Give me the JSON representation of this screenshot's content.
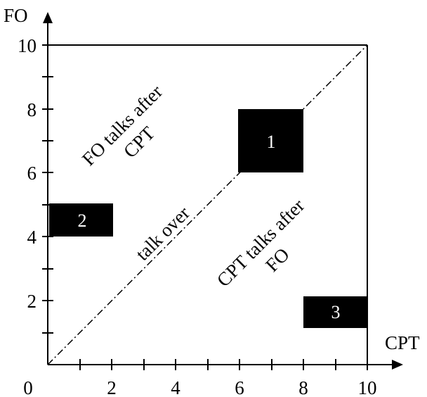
{
  "axes": {
    "x_title": "CPT",
    "y_title": "FO",
    "x_ticks": [
      "0",
      "2",
      "4",
      "6",
      "8",
      "10"
    ],
    "y_ticks": [
      "2",
      "4",
      "6",
      "8",
      "10"
    ],
    "x_range": [
      0,
      10
    ],
    "y_range": [
      0,
      10
    ]
  },
  "regions": {
    "upper_line1": "FO talks after",
    "upper_line2": "CPT",
    "diagonal": "talk over",
    "lower_line1": "CPT talks after",
    "lower_line2": "FO"
  },
  "boxes": [
    {
      "label": "1",
      "x_range": [
        6,
        8
      ],
      "y_range": [
        6,
        8
      ]
    },
    {
      "label": "2",
      "x_range": [
        0,
        2
      ],
      "y_range": [
        4,
        5
      ]
    },
    {
      "label": "3",
      "x_range": [
        8,
        10
      ],
      "y_range": [
        1.1,
        2.1
      ]
    }
  ],
  "colors": {
    "box_fill": "#000000",
    "box_text": "#ffffff",
    "line": "#000000"
  }
}
